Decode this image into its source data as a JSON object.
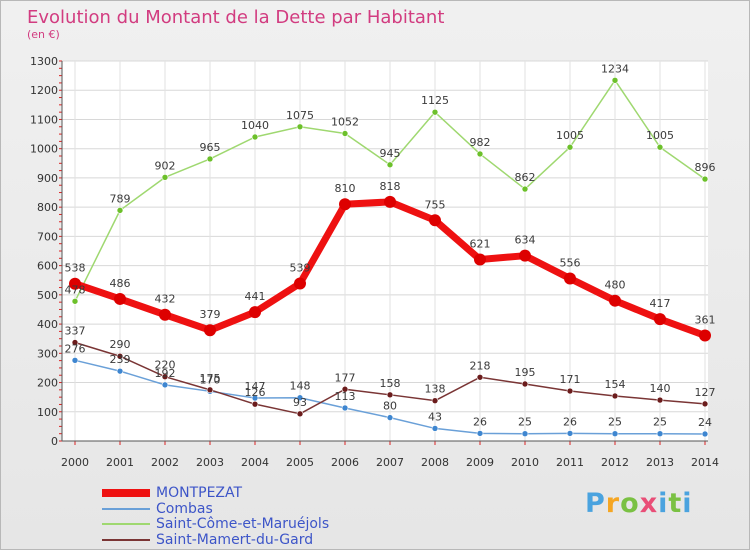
{
  "title": "Evolution du Montant de la Dette par Habitant",
  "subtitle": "(en €)",
  "brand": {
    "letters": [
      "P",
      "r",
      "o",
      "x",
      "i",
      "t",
      "i"
    ],
    "colors": [
      "#4aa3df",
      "#f5a623",
      "#7ac143",
      "#e94e77",
      "#4aa3df",
      "#7ac143",
      "#4aa3df"
    ]
  },
  "chart_data": {
    "type": "line",
    "x": [
      "2000",
      "2001",
      "2002",
      "2003",
      "2004",
      "2005",
      "2006",
      "2007",
      "2008",
      "2009",
      "2010",
      "2011",
      "2012",
      "2013",
      "2014"
    ],
    "ylim": [
      0,
      1300
    ],
    "yticks": [
      0,
      100,
      200,
      300,
      400,
      500,
      600,
      700,
      800,
      900,
      1000,
      1100,
      1200,
      1300
    ],
    "grid": true,
    "legend_position": "bottom-left",
    "series": [
      {
        "name": "MONTPEZAT",
        "color": "#ee1111",
        "marker": "#dd0000",
        "width": 7,
        "radius": 6,
        "values": [
          538,
          486,
          432,
          379,
          441,
          539,
          810,
          818,
          755,
          621,
          634,
          556,
          480,
          417,
          361
        ]
      },
      {
        "name": "Combas",
        "color": "#6aa0d8",
        "marker": "#3e86d0",
        "width": 1.5,
        "radius": 3,
        "values": [
          276,
          239,
          192,
          170,
          147,
          148,
          113,
          80,
          43,
          26,
          25,
          26,
          25,
          25,
          24
        ]
      },
      {
        "name": "Saint-Côme-et-Maruéjols",
        "color": "#9fd870",
        "marker": "#6cc02a",
        "width": 1.5,
        "radius": 3,
        "values": [
          478,
          789,
          902,
          965,
          1040,
          1075,
          1052,
          945,
          1125,
          982,
          862,
          1005,
          1234,
          1005,
          896
        ]
      },
      {
        "name": "Saint-Mamert-du-Gard",
        "color": "#7a3535",
        "marker": "#6b1c1c",
        "width": 1.5,
        "radius": 3,
        "values": [
          337,
          290,
          220,
          175,
          126,
          93,
          177,
          158,
          138,
          218,
          195,
          171,
          154,
          140,
          127
        ]
      }
    ]
  }
}
